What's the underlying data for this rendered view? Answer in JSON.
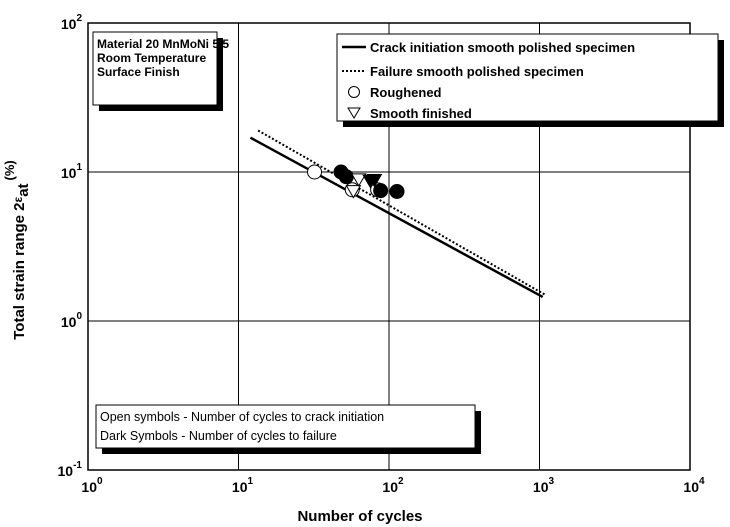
{
  "chart_data": {
    "type": "scatter",
    "xlabel": "Number of cycles",
    "ylabel": "Total strain range 2",
    "ylabel_symbol": "ε",
    "ylabel_sub": "at",
    "ylabel_unit": "(%)",
    "xlog": true,
    "ylog": true,
    "grid": true,
    "xlim": [
      1,
      10000
    ],
    "ylim": [
      0.1,
      100
    ],
    "xticks": [
      {
        "value": 1,
        "label": "10",
        "exponent": "0"
      },
      {
        "value": 10,
        "label": "10",
        "exponent": "1"
      },
      {
        "value": 100,
        "label": "10",
        "exponent": "2"
      },
      {
        "value": 1000,
        "label": "10",
        "exponent": "3"
      },
      {
        "value": 10000,
        "label": "10",
        "exponent": "4"
      }
    ],
    "yticks": [
      {
        "value": 0.1,
        "label": "10",
        "exponent": "-1"
      },
      {
        "value": 1,
        "label": "10",
        "exponent": "0"
      },
      {
        "value": 10,
        "label": "10",
        "exponent": "1"
      },
      {
        "value": 100,
        "label": "10",
        "exponent": "2"
      }
    ],
    "series": [
      {
        "name": "Crack initiation smooth polished specimen",
        "kind": "line",
        "style": "solid",
        "color": "#000000",
        "x": [
          12,
          1050
        ],
        "values": [
          17,
          1.45
        ]
      },
      {
        "name": "Failure smooth polished specimen",
        "kind": "line",
        "style": "dotted",
        "color": "#000000",
        "x": [
          13.5,
          1090
        ],
        "values": [
          19,
          1.5
        ]
      },
      {
        "name": "Roughened",
        "kind": "marker",
        "marker": "circle",
        "color": "#000000",
        "x": [
          32,
          57,
          84
        ],
        "values": [
          10,
          7.6,
          7.6
        ],
        "filled_x": [
          48,
          52,
          88,
          113
        ],
        "filled_values": [
          10,
          9.3,
          7.5,
          7.4
        ]
      },
      {
        "name": "Smooth finished",
        "kind": "marker",
        "marker": "triangle",
        "color": "#000000",
        "x": [
          58,
          63
        ],
        "values": [
          7.5,
          9.0
        ],
        "filled_x": [
          75,
          80
        ],
        "filled_values": [
          8.8,
          8.9
        ]
      }
    ],
    "annotations": {
      "material": [
        "Material 20 MnMoNi 5 5",
        "Room Temperature",
        "Surface Finish"
      ],
      "notes": [
        "Open symbols  -  Number of cycles to crack initiation",
        "Dark Symbols  -  Number of cycles to failure"
      ]
    }
  }
}
